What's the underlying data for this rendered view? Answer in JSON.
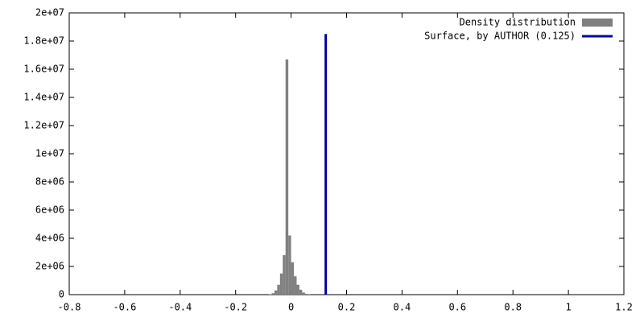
{
  "chart_data": {
    "type": "histogram",
    "bins": [
      -0.08,
      -0.07,
      -0.06,
      -0.05,
      -0.04,
      -0.03,
      -0.02,
      -0.01,
      0,
      0.01,
      0.02,
      0.03,
      0.04,
      0.05,
      0.06,
      0.07
    ],
    "values": [
      30000,
      100000,
      300000,
      700000,
      1500000,
      2800000,
      16700000,
      4200000,
      2300000,
      1300000,
      700000,
      350000,
      150000,
      60000,
      20000
    ],
    "name": "Density distribution",
    "color": "#808080",
    "lines": [
      {
        "name": "Surface, by AUTHOR (0.125)",
        "color": "#0000a0",
        "x": [
          0.125,
          0.125
        ],
        "values": [
          0,
          18500000
        ]
      }
    ],
    "xlim": [
      -0.8,
      1.2
    ],
    "xticks": [
      -0.8,
      -0.6,
      -0.4,
      -0.2,
      0,
      0.2,
      0.4,
      0.6,
      0.8,
      1,
      1.2
    ],
    "ylim": [
      0,
      20000000
    ],
    "yticks": [
      0,
      {
        "value": 2000000,
        "label": "2e+06"
      },
      {
        "value": 4000000,
        "label": "4e+06"
      },
      {
        "value": 6000000,
        "label": "6e+06"
      },
      {
        "value": 8000000,
        "label": "8e+06"
      },
      {
        "value": 10000000,
        "label": "1e+07"
      },
      {
        "value": 12000000,
        "label": "1.2e+07"
      },
      {
        "value": 14000000,
        "label": "1.4e+07"
      },
      {
        "value": 16000000,
        "label": "1.6e+07"
      },
      {
        "value": 18000000,
        "label": "1.8e+07"
      },
      {
        "value": 20000000,
        "label": "2e+07"
      }
    ],
    "legend": "top-right"
  }
}
